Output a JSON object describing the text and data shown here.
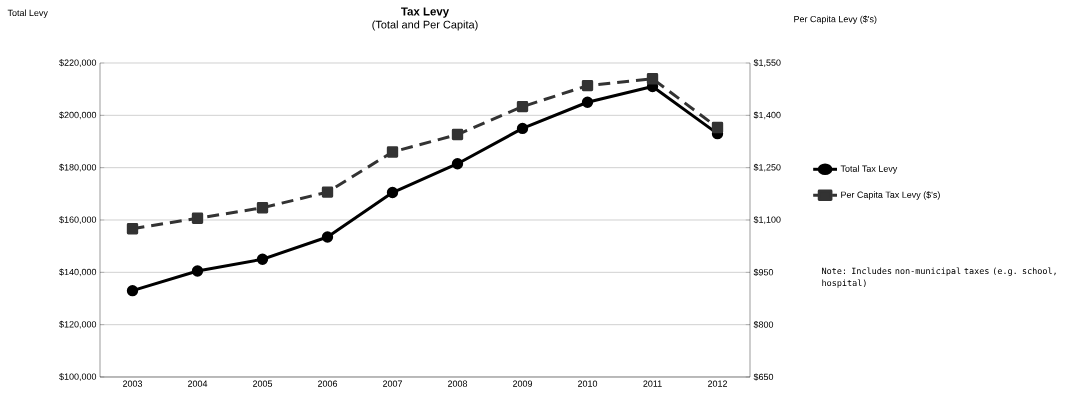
{
  "chart_data": {
    "type": "line",
    "title": "Tax Levy",
    "subtitle": "(Total and Per Capita)",
    "ylabel": "Total Levy",
    "y2label": "Per Capita Levy ($'s)",
    "categories": [
      "2003",
      "2004",
      "2005",
      "2006",
      "2007",
      "2008",
      "2009",
      "2010",
      "2011",
      "2012"
    ],
    "series": [
      {
        "name": "Total Tax Levy",
        "color": "#000000",
        "marker": "circle",
        "line_style": "solid",
        "values": [
          133000,
          140500,
          145000,
          153500,
          170500,
          181500,
          195000,
          205000,
          211000,
          193000
        ]
      },
      {
        "name": "Per Capita Tax Levy ($'s)",
        "color": "#333333",
        "marker": "square",
        "line_style": "dashed",
        "axis": "y2",
        "values": [
          1075,
          1105,
          1135,
          1180,
          1295,
          1345,
          1425,
          1485,
          1505,
          1365
        ]
      }
    ],
    "ylim": [
      100000,
      220000
    ],
    "yticks": [
      {
        "value": 100000,
        "label": "$100,000"
      },
      {
        "value": 120000,
        "label": "$120,000"
      },
      {
        "value": 140000,
        "label": "$140,000"
      },
      {
        "value": 160000,
        "label": "$160,000"
      },
      {
        "value": 180000,
        "label": "$180,000"
      },
      {
        "value": 200000,
        "label": "$200,000"
      },
      {
        "value": 220000,
        "label": "$220,000"
      }
    ],
    "y2lim": [
      650,
      1550
    ],
    "y2ticks": [
      {
        "value": 650,
        "label": "$650"
      },
      {
        "value": 800,
        "label": "$800"
      },
      {
        "value": 950,
        "label": "$950"
      },
      {
        "value": 1100,
        "label": "$1,100"
      },
      {
        "value": 1250,
        "label": "$1,250"
      },
      {
        "value": 1400,
        "label": "$1,400"
      },
      {
        "value": 1550,
        "label": "$1,550"
      }
    ],
    "grid": "y",
    "legend": "right",
    "annotations": [
      "Note: Includes non-municipal taxes (e.g. school, hospital)"
    ]
  }
}
